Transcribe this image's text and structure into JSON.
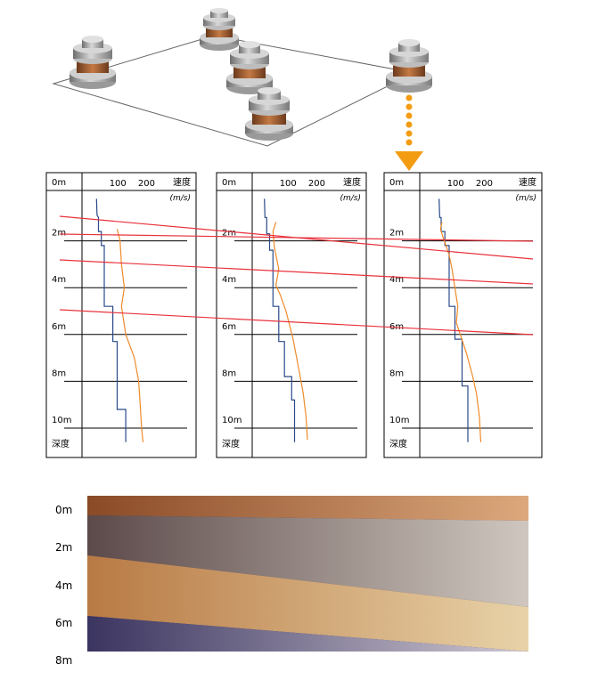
{
  "colors": {
    "orange_arrow": "#f39c12",
    "red_line": "#e8323c",
    "blue_profile": "#2a4a8a",
    "orange_profile": "#ef8a2a",
    "frame": "#000000"
  },
  "panel": {
    "depth_labels": [
      "0m",
      "2m",
      "4m",
      "6m",
      "8m",
      "10m"
    ],
    "depth_axis_label": "深度",
    "speed_label": "速度",
    "speed_unit": "(m/s)",
    "speed_ticks": [
      "100",
      "200"
    ]
  },
  "panels": [
    {
      "blue_profile": [
        [
          38,
          0.2
        ],
        [
          40,
          0.9
        ],
        [
          45,
          1.0
        ],
        [
          45,
          1.6
        ],
        [
          55,
          1.6
        ],
        [
          55,
          2.2
        ],
        [
          65,
          2.2
        ],
        [
          65,
          4.8
        ],
        [
          95,
          4.8
        ],
        [
          95,
          6.3
        ],
        [
          110,
          6.3
        ],
        [
          110,
          9.2
        ],
        [
          140,
          9.2
        ],
        [
          140,
          10.6
        ]
      ],
      "orange_profile": [
        [
          110,
          1.5
        ],
        [
          120,
          2.0
        ],
        [
          125,
          3.0
        ],
        [
          135,
          4.0
        ],
        [
          125,
          4.8
        ],
        [
          140,
          6.0
        ],
        [
          170,
          7.0
        ],
        [
          185,
          8.0
        ],
        [
          190,
          9.0
        ],
        [
          195,
          10.0
        ],
        [
          200,
          10.6
        ]
      ]
    },
    {
      "blue_profile": [
        [
          30,
          0.2
        ],
        [
          32,
          1.0
        ],
        [
          38,
          1.0
        ],
        [
          38,
          1.7
        ],
        [
          48,
          1.7
        ],
        [
          48,
          2.4
        ],
        [
          60,
          2.4
        ],
        [
          60,
          4.8
        ],
        [
          80,
          4.8
        ],
        [
          80,
          6.3
        ],
        [
          100,
          6.3
        ],
        [
          100,
          7.8
        ],
        [
          125,
          7.8
        ],
        [
          125,
          8.8
        ],
        [
          135,
          8.8
        ],
        [
          135,
          10.6
        ]
      ],
      "orange_profile": [
        [
          70,
          1.2
        ],
        [
          60,
          1.6
        ],
        [
          65,
          2.3
        ],
        [
          80,
          3.2
        ],
        [
          70,
          3.9
        ],
        [
          85,
          4.3
        ],
        [
          105,
          5.0
        ],
        [
          130,
          6.2
        ],
        [
          150,
          7.5
        ],
        [
          165,
          8.5
        ],
        [
          175,
          9.5
        ],
        [
          180,
          10.5
        ]
      ]
    },
    {
      "blue_profile": [
        [
          55,
          0.2
        ],
        [
          57,
          1.0
        ],
        [
          62,
          1.0
        ],
        [
          62,
          1.6
        ],
        [
          75,
          1.6
        ],
        [
          75,
          2.2
        ],
        [
          90,
          2.2
        ],
        [
          90,
          4.8
        ],
        [
          110,
          4.8
        ],
        [
          110,
          6.2
        ],
        [
          135,
          6.2
        ],
        [
          135,
          8.2
        ],
        [
          155,
          8.2
        ],
        [
          155,
          10.6
        ]
      ],
      "orange_profile": [
        [
          65,
          1.2
        ],
        [
          60,
          1.5
        ],
        [
          70,
          1.9
        ],
        [
          90,
          2.6
        ],
        [
          100,
          3.2
        ],
        [
          120,
          4.8
        ],
        [
          115,
          5.5
        ],
        [
          150,
          6.8
        ],
        [
          170,
          7.7
        ],
        [
          185,
          8.5
        ],
        [
          195,
          9.5
        ],
        [
          200,
          10.6
        ]
      ]
    }
  ],
  "layer_bar": {
    "depth_labels": [
      "0m",
      "2m",
      "4m",
      "6m",
      "8m"
    ]
  }
}
